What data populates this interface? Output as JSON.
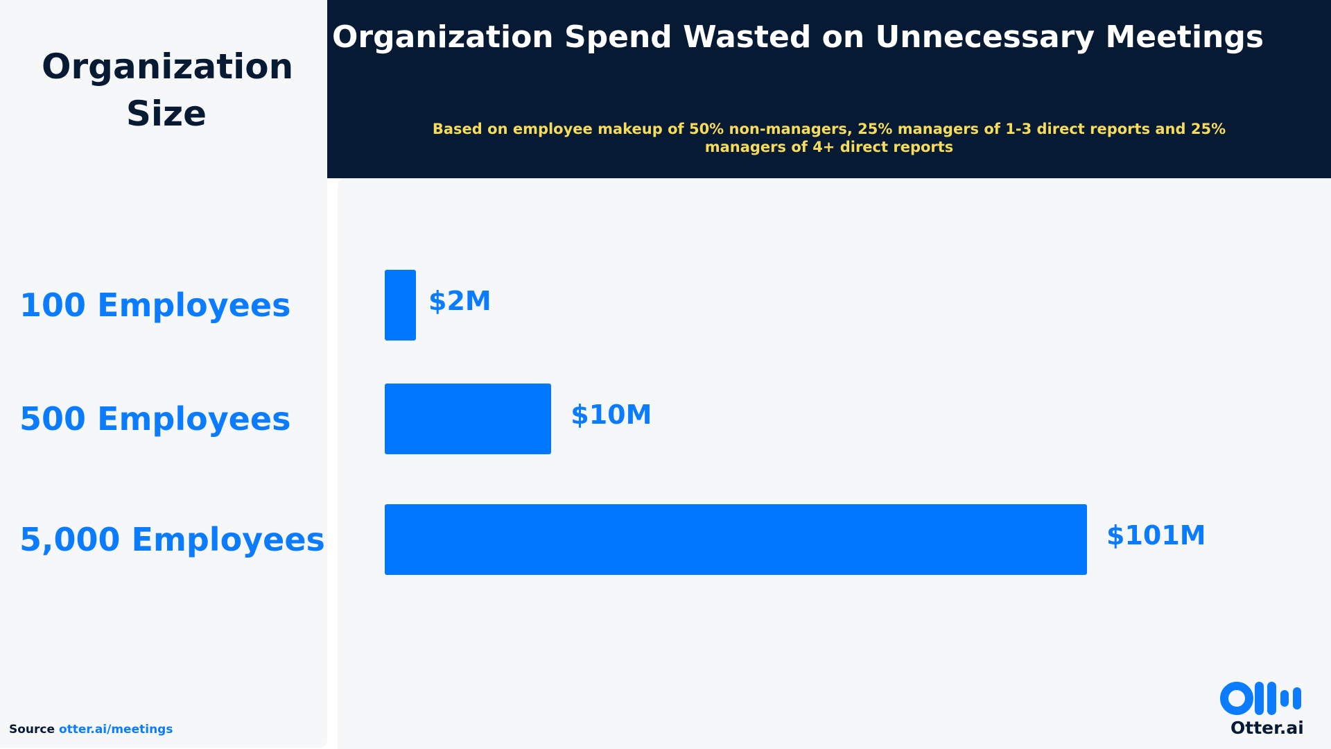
{
  "chart_data": {
    "type": "bar",
    "orientation": "horizontal",
    "title": "Organization Spend Wasted on Unnecessary Meetings",
    "subtitle": "Based on employee makeup of 50% non-managers, 25% managers of 1-3 direct reports and 25% managers of 4+ direct reports",
    "category_header": "Organization Size",
    "categories": [
      "100 Employees",
      "500 Employees",
      "5,000 Employees"
    ],
    "values": [
      2,
      10,
      101
    ],
    "value_labels": [
      "$2M",
      "$10M",
      "$101M"
    ],
    "unit": "$M",
    "grid": false,
    "colors": {
      "bar": "#0077ff",
      "header_bg": "#061a33",
      "subtitle": "#f7dc5c",
      "label": "#0b7cff"
    }
  },
  "footer": {
    "source_label": "Source",
    "source_link": "otter.ai/meetings"
  },
  "logo": {
    "text": "Otter.ai"
  }
}
